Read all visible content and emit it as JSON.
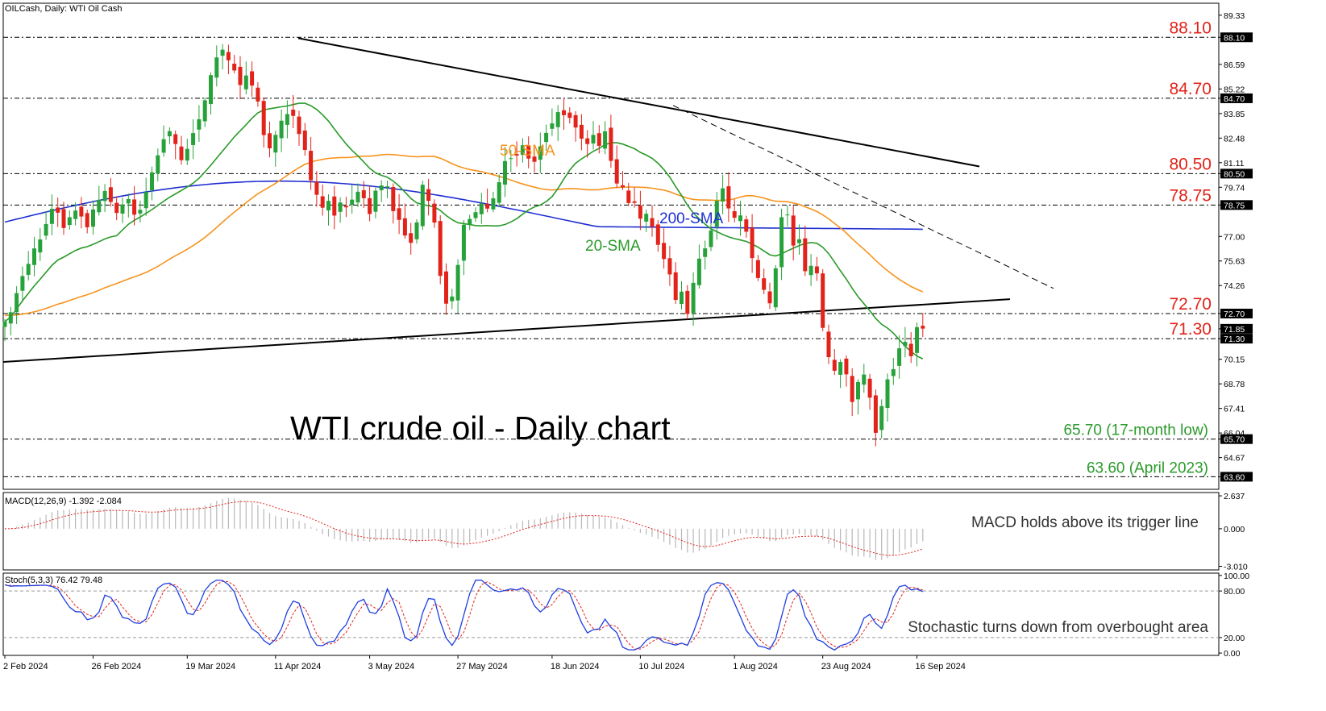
{
  "header": {
    "symbol_label": "OILCash, Daily:  WTI Oil Cash",
    "macd_label": "MACD(12,26,9) -1.392 -2.084",
    "stoch_label": "Stoch(5,3,3) 76.42 79.48"
  },
  "colors": {
    "bull": "#27a23a",
    "bear": "#e2231a",
    "sma20": "#2a9a2a",
    "sma50": "#f7931e",
    "sma200": "#1f2fd1",
    "level_text": "#e2231a",
    "low_text": "#2a9a2a",
    "annotation": "#333333",
    "stoch_main": "#1f3fe0",
    "stoch_signal": "#e2231a",
    "macd_hist": "#b8b8b8",
    "macd_signal": "#e2231a"
  },
  "chart_data": [
    {
      "type": "candlestick",
      "title": "WTI crude oil - Daily chart",
      "ylim": [
        62.9,
        90.0
      ],
      "y_ticks": [
        "89.33",
        "88.10",
        "86.59",
        "85.22",
        "84.70",
        "83.85",
        "82.48",
        "81.11",
        "80.50",
        "79.74",
        "78.75",
        "77.00",
        "75.63",
        "74.26",
        "72.70",
        "71.85",
        "71.30",
        "70.15",
        "68.78",
        "67.41",
        "66.04",
        "65.70",
        "64.67",
        "63.60"
      ],
      "highlighted_ticks": [
        "88.10",
        "84.70",
        "80.50",
        "78.75",
        "72.70",
        "71.85",
        "71.30",
        "65.70",
        "63.60"
      ],
      "x_ticks": [
        "2 Feb 2024",
        "26 Feb 2024",
        "19 Mar 2024",
        "11 Apr 2024",
        "3 May 2024",
        "27 May 2024",
        "18 Jun 2024",
        "10 Jul 2024",
        "1 Aug 2024",
        "23 Aug 2024",
        "16 Sep 2024"
      ],
      "series_labels": [
        {
          "name": "50-SMA"
        },
        {
          "name": "200-SMA"
        },
        {
          "name": "20-SMA"
        }
      ],
      "levels": [
        {
          "value": 88.1,
          "label": "88.10"
        },
        {
          "value": 84.7,
          "label": "84.70"
        },
        {
          "value": 80.5,
          "label": "80.50"
        },
        {
          "value": 78.75,
          "label": "78.75"
        },
        {
          "value": 72.7,
          "label": "72.70"
        },
        {
          "value": 71.3,
          "label": "71.30"
        },
        {
          "value": 65.7,
          "label": "65.70 (17-month low)"
        },
        {
          "value": 63.6,
          "label": "63.60 (April 2023)"
        }
      ],
      "closes_path": [
        72.5,
        73.0,
        73.9,
        75.0,
        75.4,
        76.0,
        76.6,
        77.6,
        78.5,
        78.3,
        77.6,
        78.1,
        78.4,
        78.0,
        77.3,
        78.4,
        79.1,
        79.6,
        79.0,
        78.3,
        78.7,
        79.0,
        78.2,
        78.5,
        79.5,
        80.6,
        81.6,
        82.5,
        83.0,
        82.2,
        81.3,
        82.0,
        82.8,
        83.3,
        84.5,
        85.9,
        87.0,
        87.4,
        86.8,
        86.2,
        85.6,
        85.9,
        85.3,
        84.4,
        82.6,
        82.0,
        82.7,
        83.5,
        83.9,
        83.8,
        82.9,
        81.8,
        80.0,
        79.4,
        78.6,
        78.9,
        78.2,
        79.1,
        78.4,
        79.0,
        79.4,
        79.1,
        78.4,
        79.6,
        79.9,
        79.8,
        78.6,
        78.1,
        77.0,
        76.6,
        77.9,
        80.0,
        79.1,
        77.9,
        74.9,
        73.2,
        73.6,
        75.4,
        77.5,
        78.0,
        78.5,
        78.8,
        78.6,
        79.1,
        80.1,
        81.1,
        81.3,
        81.7,
        82.0,
        81.3,
        81.0,
        81.8,
        82.8,
        83.4,
        84.0,
        83.8,
        83.6,
        82.9,
        82.5,
        82.1,
        82.7,
        82.0,
        82.7,
        81.2,
        80.0,
        79.6,
        79.0,
        78.9,
        78.0,
        78.2,
        77.5,
        76.6,
        75.6,
        75.0,
        73.4,
        73.8,
        72.8,
        74.5,
        75.8,
        76.3,
        77.2,
        79.0,
        79.5,
        78.5,
        77.9,
        78.2,
        77.2,
        75.9,
        74.6,
        74.1,
        73.2,
        75.1,
        78.1,
        78.2,
        76.6,
        76.9,
        75.0,
        75.4,
        75.1,
        71.8,
        70.2,
        69.6,
        70.1,
        69.2,
        67.6,
        69.1,
        69.3,
        67.9,
        66.0,
        67.6,
        69.0,
        69.6,
        70.7,
        71.3,
        70.3,
        71.9,
        71.95
      ],
      "closes": [
        72.25,
        72.77,
        73.84,
        74.79,
        75.47,
        76.33,
        76.83,
        77.69,
        78.54,
        78.32,
        77.47,
        78.07,
        78.44,
        78.11,
        77.51,
        78.5,
        79.04,
        79.53,
        78.92,
        78.31,
        78.78,
        79.08,
        78.21,
        78.48,
        79.47,
        80.57,
        81.52,
        82.42,
        82.87,
        82.15,
        81.25,
        81.88,
        82.76,
        83.53,
        84.59,
        85.99,
        86.98,
        87.41,
        86.82,
        86.25,
        85.44,
        85.97,
        85.41,
        84.52,
        82.65,
        81.91,
        82.66,
        83.45,
        83.82,
        83.72,
        82.71,
        81.82,
        80.13,
        79.32,
        78.6,
        78.98,
        78.16,
        78.89,
        78.62,
        79.05,
        79.49,
        79.13,
        78.25,
        79.55,
        79.84,
        79.79,
        78.41,
        77.92,
        77.05,
        76.64,
        77.78,
        79.88,
        78.98,
        77.77,
        74.8,
        73.25,
        73.65,
        75.41,
        77.65,
        77.97,
        78.35,
        78.83,
        78.55,
        79.12,
        80.02,
        81.2,
        81.36,
        81.51,
        82.08,
        81.34,
        81.16,
        82.02,
        82.77,
        83.3,
        83.93,
        83.76,
        83.61,
        83.07,
        82.45,
        82.15,
        82.66,
        82.05,
        82.86,
        81.21,
        79.95,
        79.74,
        78.86,
        78.87,
        77.99,
        78.26,
        77.54,
        76.53,
        75.74,
        74.88,
        73.46,
        73.92,
        72.68,
        74.41,
        75.76,
        76.33,
        77.33,
        78.98,
        79.68,
        78.56,
        78.04,
        78.17,
        77.26,
        75.79,
        74.68,
        74.02,
        73.27,
        75.22,
        78.07,
        78.22,
        76.49,
        76.84,
        75.06,
        75.36,
        74.94,
        71.9,
        70.27,
        69.51,
        70.0,
        69.31,
        67.77,
        68.88,
        69.3,
        68.01,
        66.05,
        67.54,
        69.03,
        69.6,
        70.76,
        71.12,
        70.32,
        71.94,
        71.86
      ]
    },
    {
      "type": "bar",
      "title": "MACD(12,26,9) -1.392 -2.084",
      "ylim": [
        -3.3,
        2.9
      ],
      "y_ticks": [
        "2.637",
        "0.000",
        "-3.010"
      ],
      "main": -1.392,
      "signal": -2.084
    },
    {
      "type": "line",
      "title": "Stoch(5,3,3) 76.42 79.48",
      "ylim": [
        -3,
        103
      ],
      "y_ticks": [
        "100.00",
        "80.00",
        "20.00",
        "0.00"
      ],
      "main": 76.42,
      "signal": 79.48
    }
  ],
  "annotations": {
    "macd_note": "MACD holds above its trigger line",
    "stoch_note": "Stochastic turns down from overbought area"
  }
}
